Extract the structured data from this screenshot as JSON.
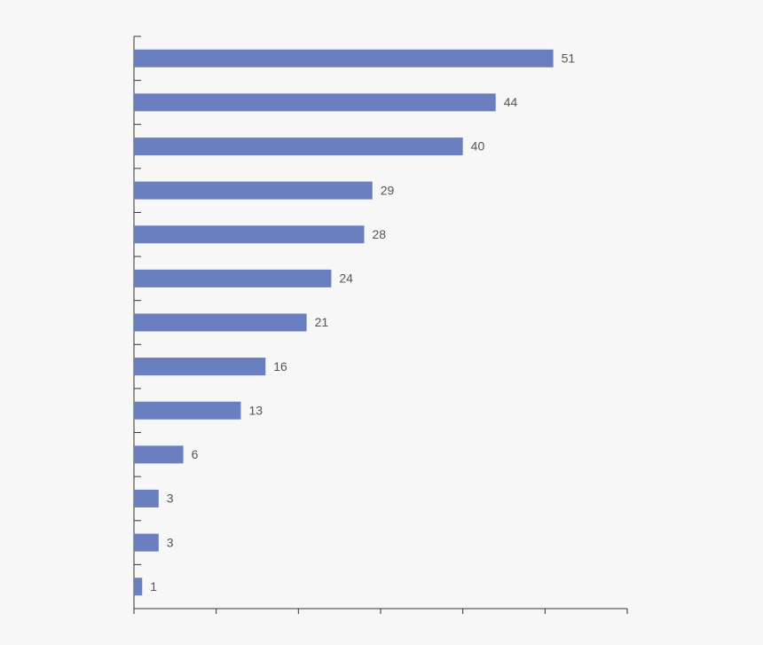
{
  "chart_data": {
    "type": "bar",
    "orientation": "horizontal",
    "categories": [
      null,
      null,
      null,
      null,
      null,
      null,
      null,
      null,
      null,
      null,
      null,
      null,
      null
    ],
    "values": [
      51,
      44,
      40,
      29,
      28,
      24,
      21,
      16,
      13,
      6,
      3,
      3,
      1
    ],
    "color": "#6a7fbf",
    "xlim": [
      0,
      60
    ],
    "xticks": [
      0,
      10,
      20,
      30,
      40,
      50,
      60
    ],
    "grid": false
  }
}
